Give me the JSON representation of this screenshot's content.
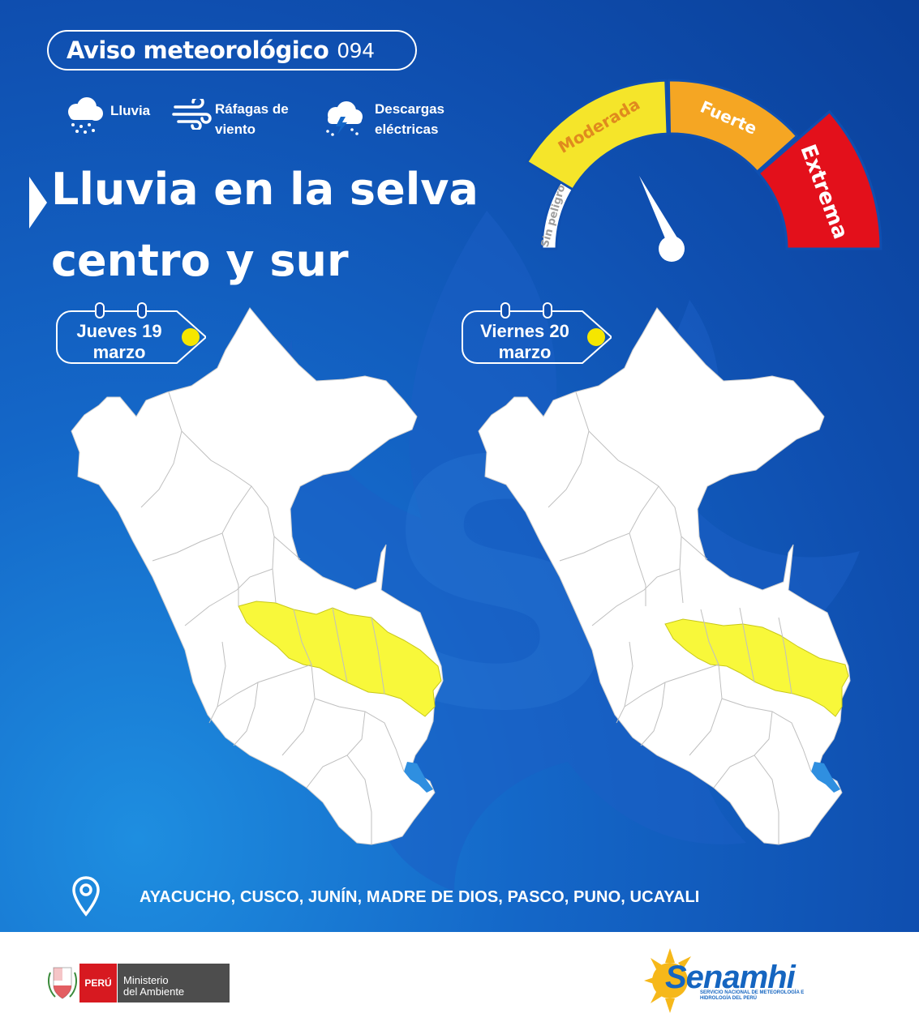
{
  "header": {
    "title": "Aviso meteorológico",
    "number": "094"
  },
  "legend": {
    "lluvia": "Lluvia",
    "rafagas_line1": "Ráfagas de",
    "rafagas_line2": "viento",
    "descargas_line1": "Descargas",
    "descargas_line2": "eléctricas"
  },
  "headline": {
    "line1": "Lluvia en la selva",
    "line2": "centro y sur"
  },
  "gauge": {
    "levels": [
      {
        "label": "Sin peligro",
        "color": "#ffffff",
        "text_color": "#9e9e9e"
      },
      {
        "label": "Moderada",
        "color": "#f5e52a",
        "text_color": "#e08a1e"
      },
      {
        "label": "Fuerte",
        "color": "#f5a623",
        "text_color": "#ffffff"
      },
      {
        "label": "Extrema",
        "color": "#e3101b",
        "text_color": "#ffffff"
      }
    ],
    "current_level": "Moderada"
  },
  "days": [
    {
      "weekday": "Jueves 19",
      "month": "marzo"
    },
    {
      "weekday": "Viernes 20",
      "month": "marzo"
    }
  ],
  "colors": {
    "background": "#0f4fb0",
    "alert_yellow": "#f8f83a",
    "lake_blue": "#2f8fe0",
    "sun_marker": "#f5e600"
  },
  "regions_affected": "AYACUCHO, CUSCO, JUNÍN, MADRE DE DIOS, PASCO, PUNO, UCAYALI",
  "footer": {
    "peru_label": "PERÚ",
    "ministry_line1": "Ministerio",
    "ministry_line2": "del Ambiente",
    "agency": "Senamhi",
    "agency_sub": "SERVICIO NACIONAL DE METEOROLOGÍA E HIDROLOGÍA DEL PERÚ"
  }
}
